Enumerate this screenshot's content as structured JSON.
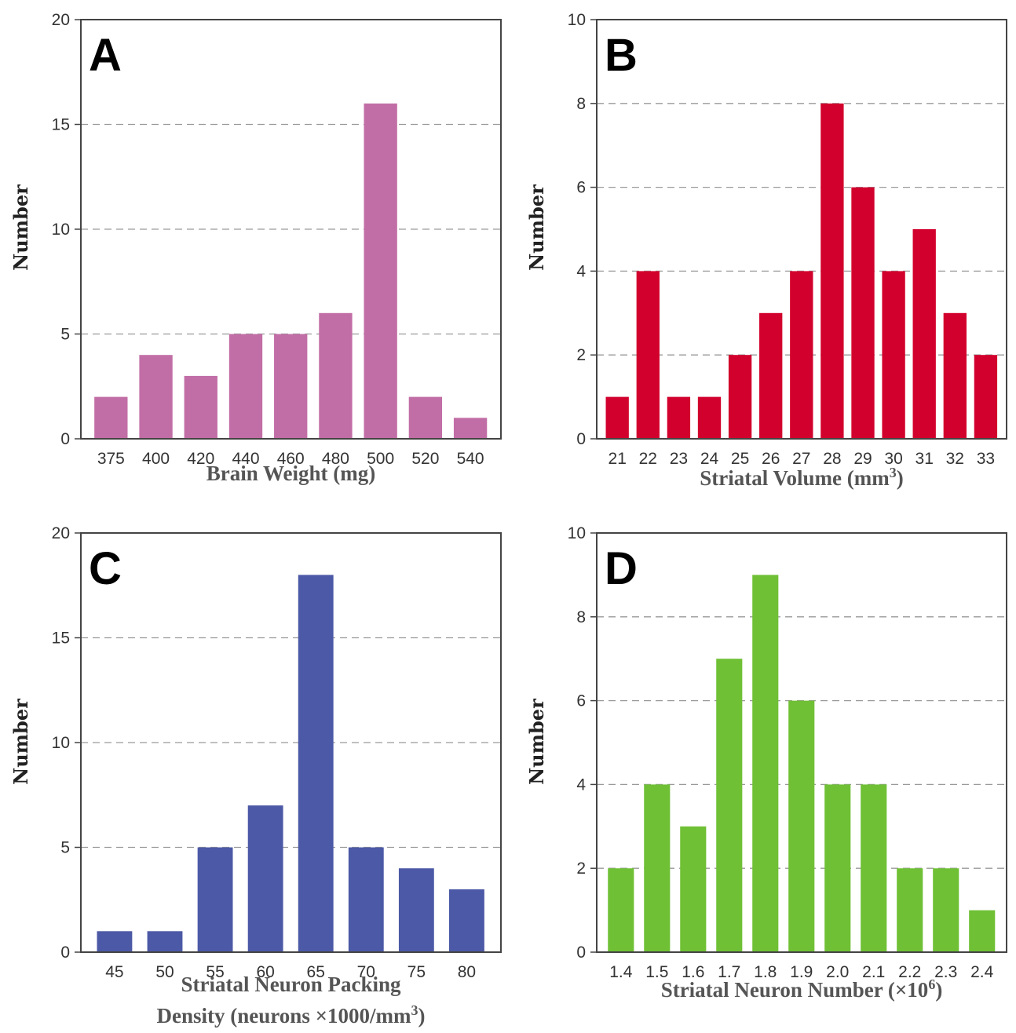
{
  "chart_data": [
    {
      "type": "bar",
      "panel_label": "A",
      "color": "#c26ea6",
      "categories": [
        "375",
        "400",
        "420",
        "440",
        "460",
        "480",
        "500",
        "520",
        "540"
      ],
      "values": [
        2,
        4,
        3,
        5,
        5,
        6,
        16,
        2,
        1
      ],
      "ylim": [
        0,
        20
      ],
      "yticks": [
        0,
        5,
        10,
        15,
        20
      ],
      "ylabel": "Number",
      "xlabel_lines": [
        {
          "text": "Brain Weight (mg)",
          "sup": ""
        }
      ],
      "grid": "horizontal-dashed"
    },
    {
      "type": "bar",
      "panel_label": "B",
      "color": "#d2002c",
      "categories": [
        "21",
        "22",
        "23",
        "24",
        "25",
        "26",
        "27",
        "28",
        "29",
        "30",
        "31",
        "32",
        "33"
      ],
      "values": [
        1,
        4,
        1,
        1,
        2,
        3,
        4,
        8,
        6,
        4,
        5,
        3,
        2
      ],
      "ylim": [
        0,
        10
      ],
      "yticks": [
        0,
        2,
        4,
        6,
        8,
        10
      ],
      "ylabel": "Number",
      "xlabel_lines": [
        {
          "text": "Striatal Volume (mm",
          "sup": "3",
          "after": ")"
        }
      ],
      "grid": "horizontal-dashed"
    },
    {
      "type": "bar",
      "panel_label": "C",
      "color": "#4c59a6",
      "categories": [
        "45",
        "50",
        "55",
        "60",
        "65",
        "70",
        "75",
        "80"
      ],
      "values": [
        1,
        1,
        5,
        7,
        18,
        5,
        4,
        3
      ],
      "ylim": [
        0,
        20
      ],
      "yticks": [
        0,
        5,
        10,
        15,
        20
      ],
      "ylabel": "Number",
      "xlabel_lines": [
        {
          "text": "Striatal Neuron Packing",
          "sup": ""
        },
        {
          "text": "Density (neurons ×1000/mm",
          "sup": "3",
          "after": ")"
        }
      ],
      "grid": "horizontal-dashed"
    },
    {
      "type": "bar",
      "panel_label": "D",
      "color": "#6fc035",
      "categories": [
        "1.4",
        "1.5",
        "1.6",
        "1.7",
        "1.8",
        "1.9",
        "2.0",
        "2.1",
        "2.2",
        "2.3",
        "2.4"
      ],
      "values": [
        2,
        4,
        3,
        7,
        9,
        6,
        4,
        4,
        2,
        2,
        1
      ],
      "ylim": [
        0,
        10
      ],
      "yticks": [
        0,
        2,
        4,
        6,
        8,
        10
      ],
      "ylabel": "Number",
      "xlabel_lines": [
        {
          "text": "Striatal Neuron Number (×10",
          "sup": "6",
          "after": ")"
        }
      ],
      "grid": "horizontal-dashed"
    }
  ]
}
